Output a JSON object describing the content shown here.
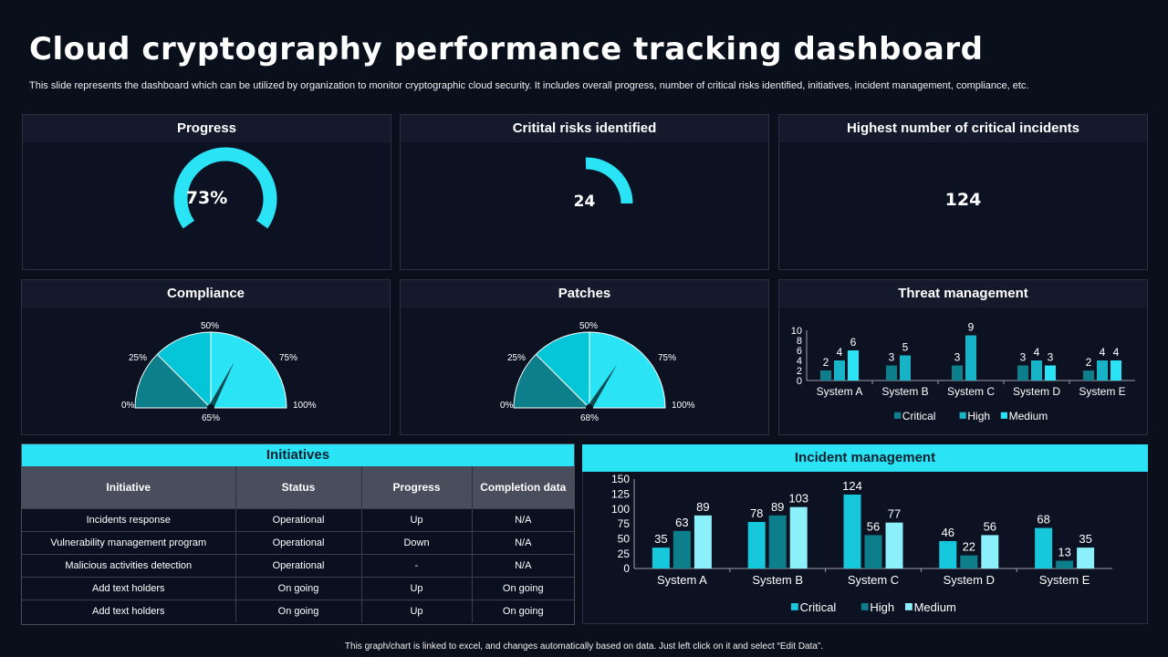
{
  "title": "Cloud cryptography performance tracking dashboard",
  "subtitle": "This slide represents the dashboard which can be utilized by organization to monitor cryptographic cloud security. It includes overall progress, number of critical risks identified, initiatives, incident management, compliance, etc.",
  "footer": "This graph/chart is linked to excel, and changes automatically based on data. Just left click on it and select “Edit Data”.",
  "colors": {
    "cyan": "#2ae4f5",
    "teal": "#17b3c6",
    "dark_teal": "#0d7f8a",
    "light_cyan": "#8cf0fb"
  },
  "progress": {
    "label": "Progress",
    "value": "73%",
    "fraction": 0.73
  },
  "risks": {
    "label": "Critital risks identified",
    "value": "24"
  },
  "incidents_kpi": {
    "label": "Highest number of critical incidents",
    "value": "124"
  },
  "compliance": {
    "label": "Compliance",
    "ticks": [
      "0%",
      "25%",
      "50%",
      "75%",
      "100%"
    ],
    "value_label": "65%",
    "value": 65
  },
  "patches": {
    "label": "Patches",
    "ticks": [
      "0%",
      "25%",
      "50%",
      "75%",
      "100%"
    ],
    "value_label": "68%",
    "value": 68
  },
  "chart_data": [
    {
      "type": "bar",
      "title": "Threat management",
      "categories": [
        "System A",
        "System B",
        "System C",
        "System D",
        "System E"
      ],
      "series": [
        {
          "name": "Critical",
          "values": [
            2,
            3,
            3,
            3,
            2
          ]
        },
        {
          "name": "High",
          "values": [
            4,
            5,
            9,
            4,
            4
          ]
        },
        {
          "name": "Medium",
          "values": [
            6,
            null,
            null,
            3,
            4
          ]
        }
      ],
      "yticks": [
        "0",
        "2",
        "4",
        "6",
        "8",
        "10"
      ],
      "ylim": [
        0,
        10
      ]
    },
    {
      "type": "bar",
      "title": "Incident management",
      "categories": [
        "System A",
        "System B",
        "System C",
        "System D",
        "System E"
      ],
      "series": [
        {
          "name": "Critical",
          "values": [
            35,
            78,
            124,
            46,
            68
          ]
        },
        {
          "name": "High",
          "values": [
            63,
            89,
            56,
            22,
            13
          ]
        },
        {
          "name": "Medium",
          "values": [
            89,
            103,
            77,
            56,
            35
          ]
        }
      ],
      "yticks": [
        "0",
        "25",
        "50",
        "75",
        "100",
        "125",
        "150"
      ],
      "ylim": [
        0,
        150
      ]
    }
  ],
  "initiatives": {
    "label": "Initiatives",
    "headers": [
      "Initiative",
      "Status",
      "Progress",
      "Completion data"
    ],
    "rows": [
      [
        "Incidents response",
        "Operational",
        "Up",
        "N/A"
      ],
      [
        "Vulnerability management  program",
        "Operational",
        "Down",
        "N/A"
      ],
      [
        "Malicious activities detection",
        "Operational",
        "-",
        "N/A"
      ],
      [
        "Add text holders",
        "On going",
        "Up",
        "On going"
      ],
      [
        "Add text holders",
        "On going",
        "Up",
        "On going"
      ]
    ]
  }
}
